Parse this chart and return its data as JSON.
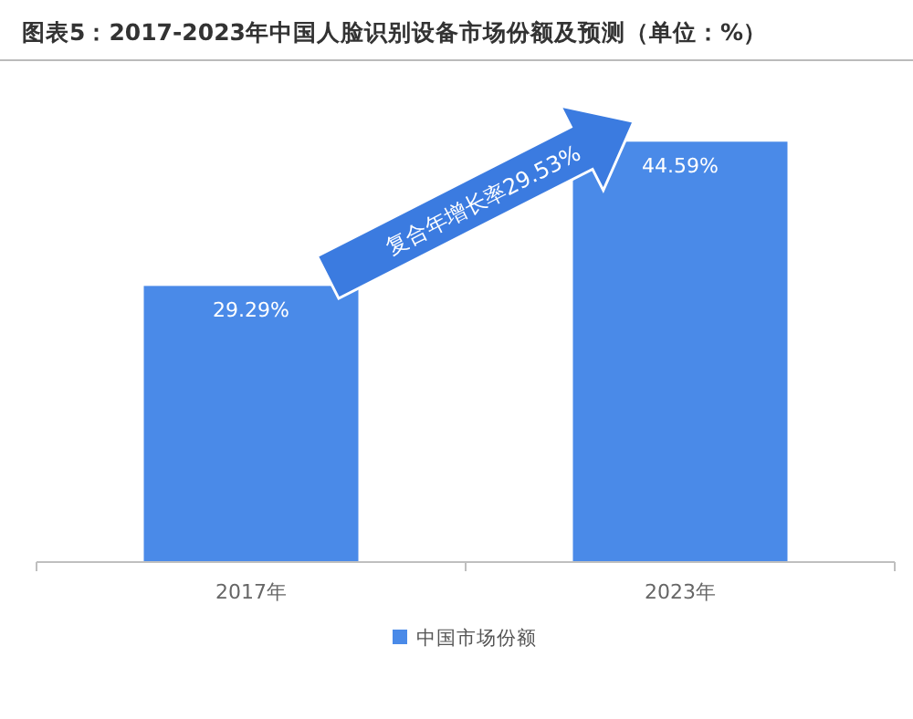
{
  "chart_data": {
    "type": "bar",
    "title": "图表5：2017-2023年中国人脸识别设备市场份额及预测（单位：%）",
    "categories": [
      "2017年",
      "2023年"
    ],
    "series": [
      {
        "name": "中国市场份额",
        "color": "#4a8ae8",
        "values": [
          29.29,
          44.59
        ],
        "value_labels": [
          "29.29%",
          "44.59%"
        ]
      }
    ],
    "annotations": [
      "复合年增长率29.53%"
    ],
    "legend": "bottom",
    "grid": false
  }
}
